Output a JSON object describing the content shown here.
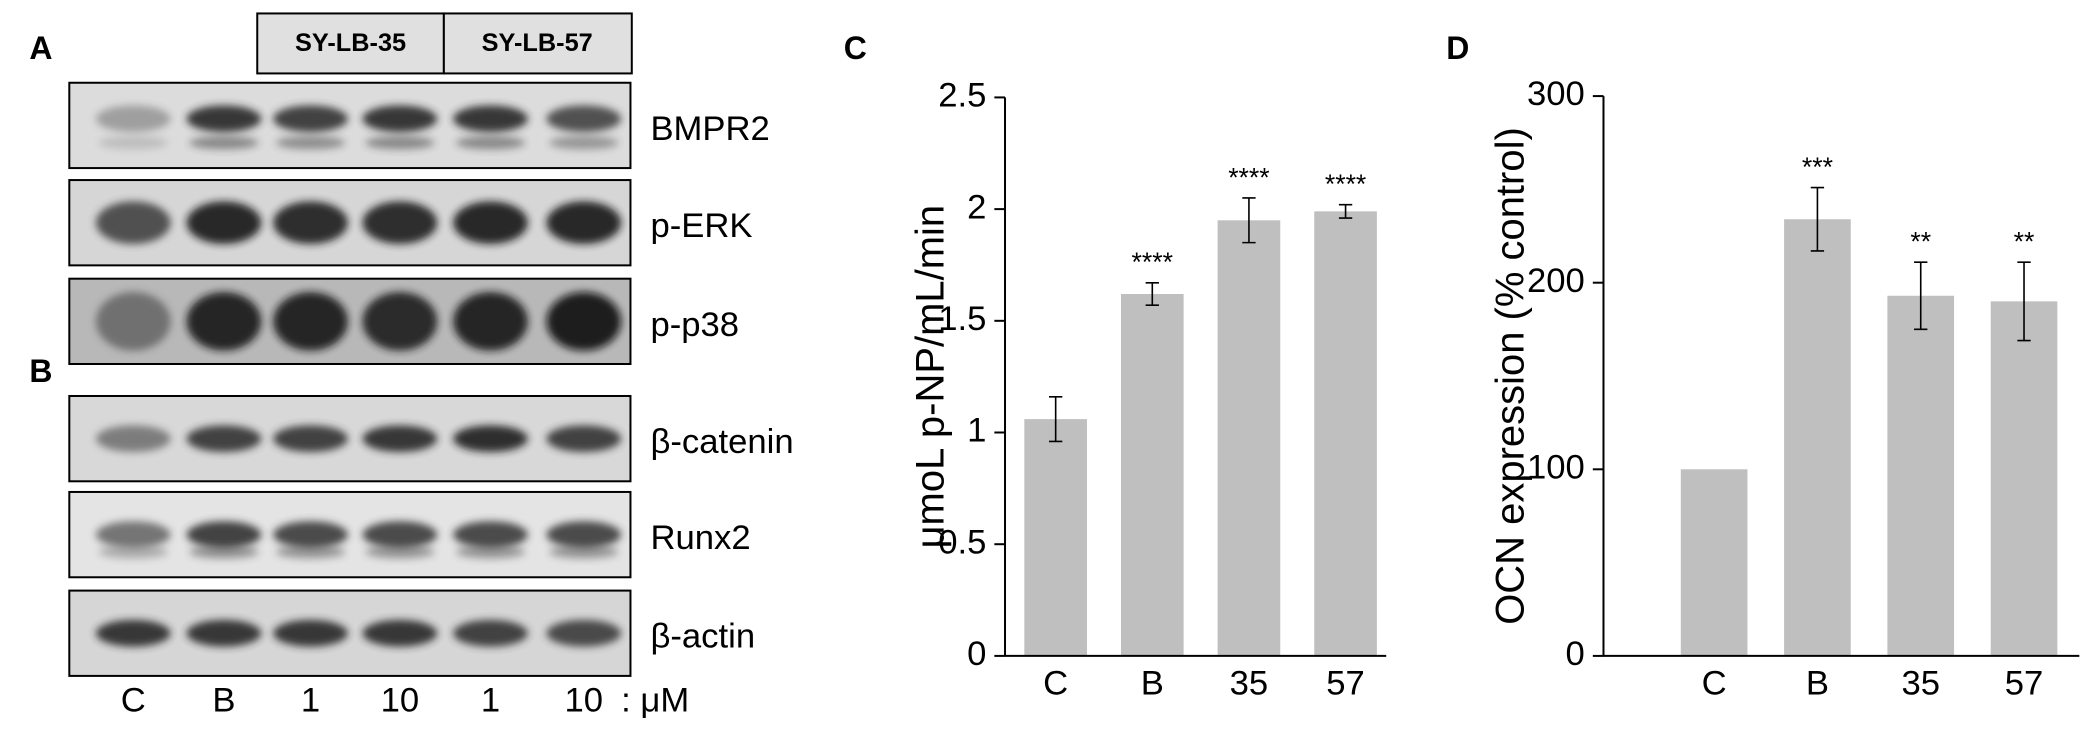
{
  "blots": {
    "panel_labels": [
      "A",
      "B"
    ],
    "groups": [
      "SY-LB-35",
      "SY-LB-57"
    ],
    "rows": [
      "BMPR2",
      "p-ERK",
      "p-p38",
      "β-catenin",
      "Runx2",
      "β-actin"
    ],
    "lanes": [
      "C",
      "B",
      "1",
      "10",
      "1",
      "10"
    ],
    "unit": ": μM"
  },
  "chart_data": [
    {
      "type": "bar",
      "panel_label": "C",
      "ylabel": "μmoL p-NP/mL/min",
      "categories": [
        "C",
        "B",
        "35",
        "57"
      ],
      "values": [
        1.06,
        1.62,
        1.95,
        1.99
      ],
      "errors": [
        0.1,
        0.05,
        0.1,
        0.03
      ],
      "annotations": [
        null,
        "****",
        "****",
        "****"
      ],
      "color": "#bfbfbf",
      "ylim": [
        0,
        2.5
      ],
      "yticks": [
        0,
        0.5,
        1,
        1.5,
        2,
        2.5
      ],
      "grid": false
    },
    {
      "type": "bar",
      "panel_label": "D",
      "ylabel": "OCN expression (% control)",
      "categories": [
        "C",
        "B",
        "35",
        "57"
      ],
      "values": [
        100,
        234,
        193,
        190
      ],
      "errors": [
        null,
        17,
        18,
        21
      ],
      "annotations": [
        null,
        "***",
        "**",
        "**"
      ],
      "color": "#bfbfbf",
      "ylim": [
        0,
        300
      ],
      "yticks": [
        0,
        100,
        200,
        300
      ],
      "grid": false
    }
  ]
}
